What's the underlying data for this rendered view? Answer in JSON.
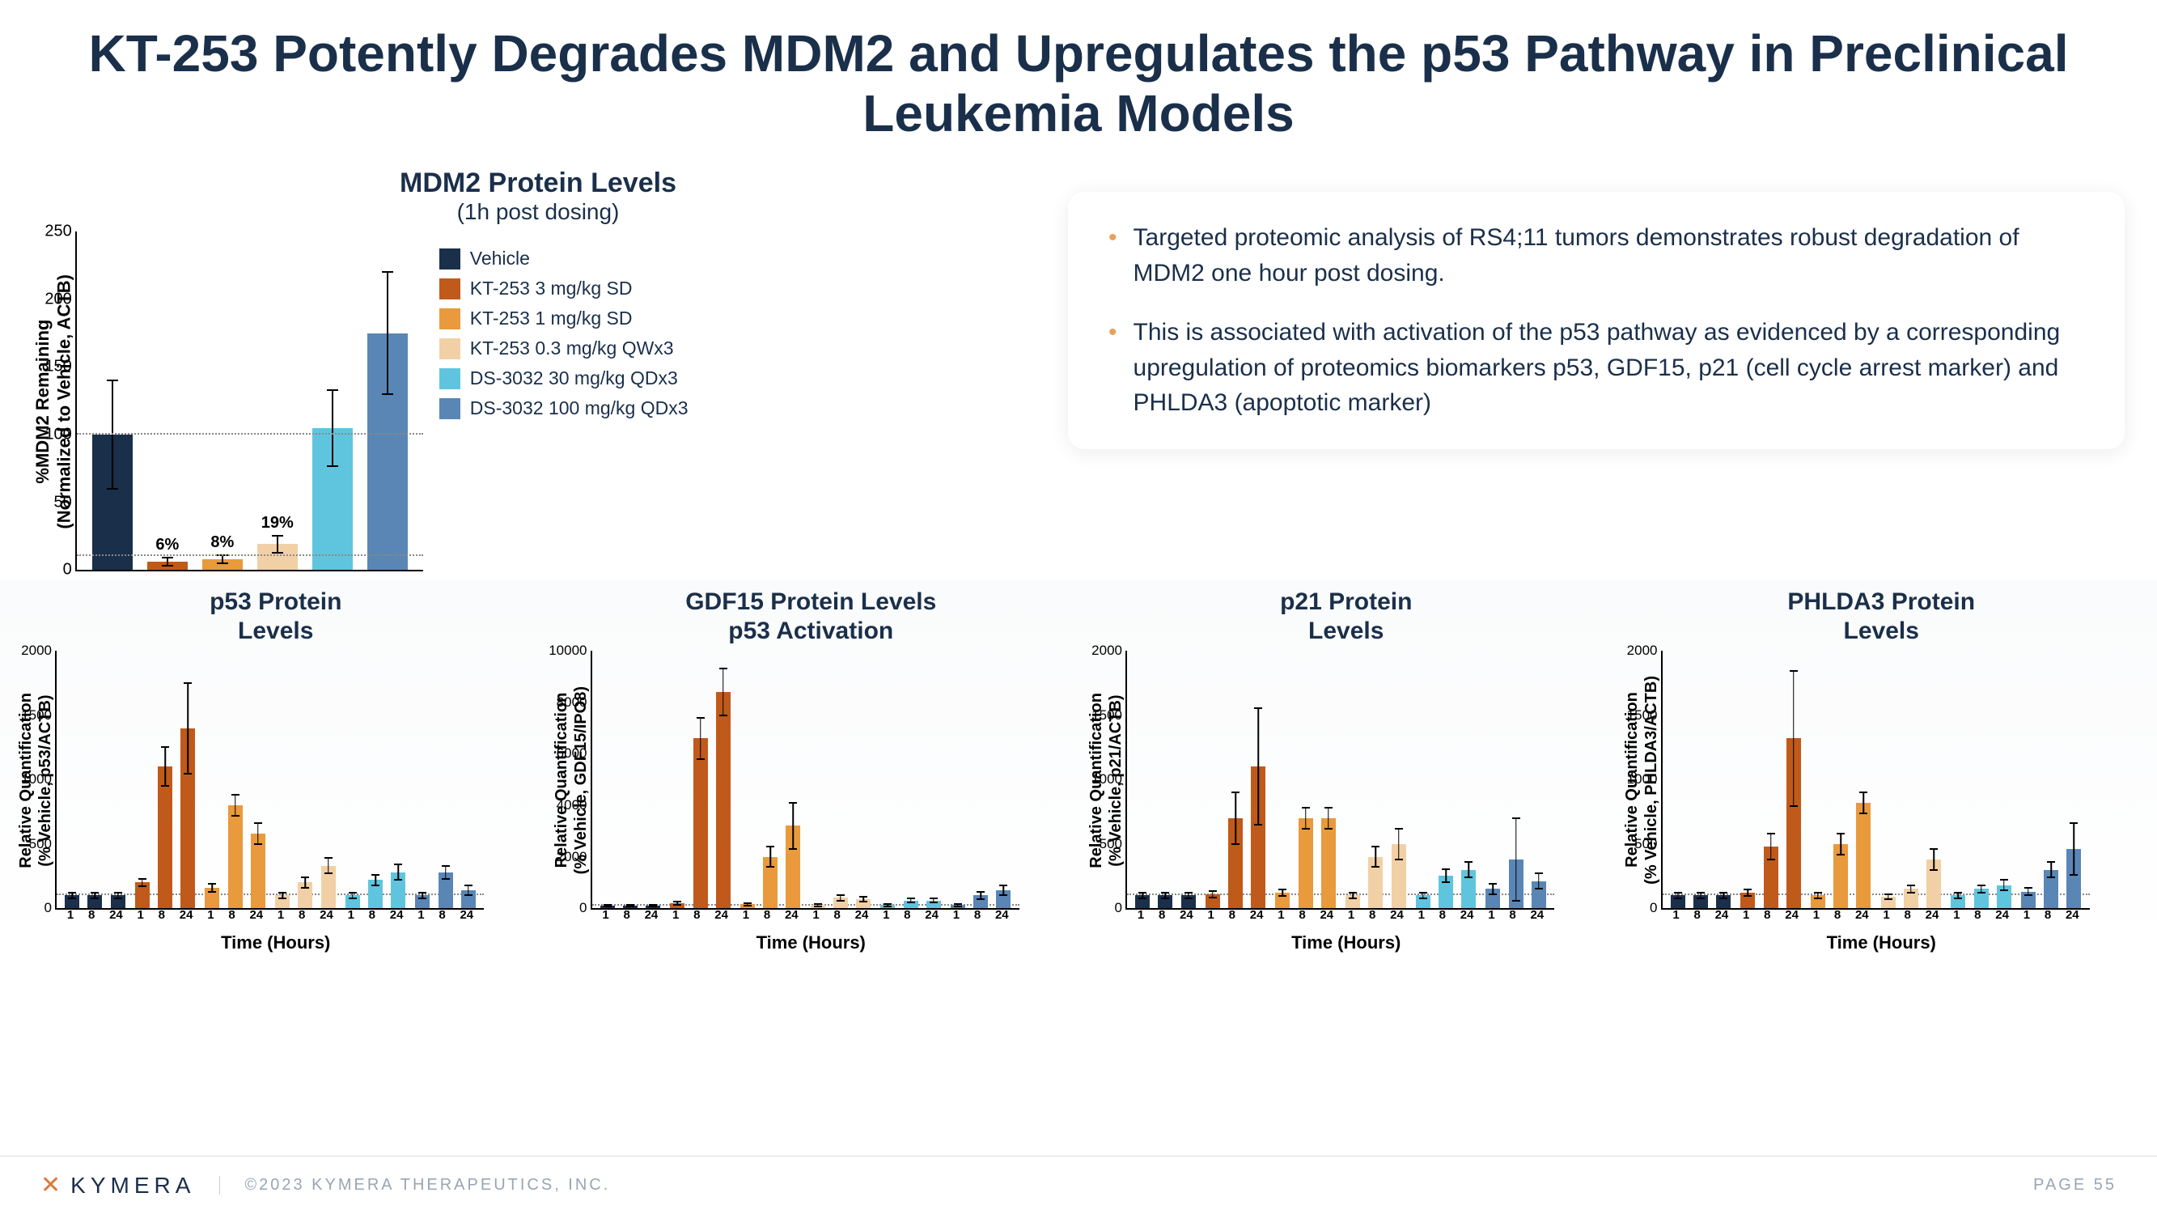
{
  "title": "KT-253 Potently Degrades MDM2 and Upregulates the p53 Pathway in Preclinical Leukemia Models",
  "colors": {
    "vehicle": "#1a2f4a",
    "kt3": "#c05a1a",
    "kt1": "#e89a3c",
    "kt03": "#f2d0a6",
    "ds30": "#5fc5de",
    "ds100": "#5a86b5",
    "bullet": "#e8a05a",
    "grid": "#888888"
  },
  "mdm2": {
    "title": "MDM2 Protein Levels",
    "subtitle": "(1h post dosing)",
    "ylabel": "%MDM2 Remaining\n(Normalized to Vehicle, ACTB)",
    "ymax": 250,
    "ytick": 50,
    "bars": [
      {
        "val": 100,
        "err": 40,
        "color": "vehicle"
      },
      {
        "val": 6,
        "err": 3,
        "color": "kt3",
        "label": "6%"
      },
      {
        "val": 8,
        "err": 3,
        "color": "kt1",
        "label": "8%"
      },
      {
        "val": 19,
        "err": 6,
        "color": "kt03",
        "label": "19%"
      },
      {
        "val": 105,
        "err": 28,
        "color": "ds30"
      },
      {
        "val": 175,
        "err": 45,
        "color": "ds100"
      }
    ]
  },
  "legend": [
    {
      "c": "vehicle",
      "t": "Vehicle"
    },
    {
      "c": "kt3",
      "t": "KT-253 3 mg/kg SD"
    },
    {
      "c": "kt1",
      "t": "KT-253 1 mg/kg SD"
    },
    {
      "c": "kt03",
      "t": "KT-253 0.3 mg/kg QWx3"
    },
    {
      "c": "ds30",
      "t": "DS-3032 30 mg/kg QDx3"
    },
    {
      "c": "ds100",
      "t": "DS-3032 100 mg/kg QDx3"
    }
  ],
  "bullets": [
    "Targeted proteomic analysis of RS4;11 tumors demonstrates robust degradation of MDM2 one hour post dosing.",
    "This is associated with activation of the p53 pathway as evidenced by a corresponding upregulation of proteomics biomarkers p53, GDF15, p21 (cell cycle arrest marker) and PHLDA3 (apoptotic marker)"
  ],
  "xlabel": "Time (Hours)",
  "xticks": [
    "1",
    "8",
    "24"
  ],
  "small": [
    {
      "title": "p53 Protein Levels",
      "ylabel": "Relative Quantification\n(% Vehicle, p53/ACTB)",
      "ymax": 2000,
      "ytick": 500,
      "groups": [
        [
          {
            "v": 100,
            "e": 20
          },
          {
            "v": 100,
            "e": 20
          },
          {
            "v": 100,
            "e": 20
          }
        ],
        [
          {
            "v": 200,
            "e": 30
          },
          {
            "v": 1100,
            "e": 150
          },
          {
            "v": 1400,
            "e": 350
          }
        ],
        [
          {
            "v": 160,
            "e": 30
          },
          {
            "v": 800,
            "e": 80
          },
          {
            "v": 580,
            "e": 80
          }
        ],
        [
          {
            "v": 100,
            "e": 20
          },
          {
            "v": 200,
            "e": 40
          },
          {
            "v": 330,
            "e": 60
          }
        ],
        [
          {
            "v": 100,
            "e": 20
          },
          {
            "v": 220,
            "e": 40
          },
          {
            "v": 280,
            "e": 60
          }
        ],
        [
          {
            "v": 100,
            "e": 20
          },
          {
            "v": 280,
            "e": 50
          },
          {
            "v": 140,
            "e": 40
          }
        ]
      ]
    },
    {
      "title": "GDF15 Protein Levels p53 Activation",
      "ylabel": "Relative Quantification\n(% Vehicle, GDF15/IPO8)",
      "ymax": 10000,
      "ytick": 2000,
      "groups": [
        [
          {
            "v": 100,
            "e": 30
          },
          {
            "v": 100,
            "e": 30
          },
          {
            "v": 100,
            "e": 30
          }
        ],
        [
          {
            "v": 200,
            "e": 60
          },
          {
            "v": 6600,
            "e": 800
          },
          {
            "v": 8400,
            "e": 900
          }
        ],
        [
          {
            "v": 150,
            "e": 50
          },
          {
            "v": 2000,
            "e": 400
          },
          {
            "v": 3200,
            "e": 900
          }
        ],
        [
          {
            "v": 120,
            "e": 40
          },
          {
            "v": 400,
            "e": 100
          },
          {
            "v": 350,
            "e": 100
          }
        ],
        [
          {
            "v": 120,
            "e": 40
          },
          {
            "v": 300,
            "e": 80
          },
          {
            "v": 300,
            "e": 80
          }
        ],
        [
          {
            "v": 120,
            "e": 40
          },
          {
            "v": 500,
            "e": 150
          },
          {
            "v": 700,
            "e": 200
          }
        ]
      ]
    },
    {
      "title": "p21 Protein Levels",
      "ylabel": "Relative Quantification\n(% Vehicle, p21/ACTB)",
      "ymax": 2000,
      "ytick": 500,
      "groups": [
        [
          {
            "v": 100,
            "e": 20
          },
          {
            "v": 100,
            "e": 20
          },
          {
            "v": 100,
            "e": 20
          }
        ],
        [
          {
            "v": 110,
            "e": 25
          },
          {
            "v": 700,
            "e": 200
          },
          {
            "v": 1100,
            "e": 450
          }
        ],
        [
          {
            "v": 120,
            "e": 25
          },
          {
            "v": 700,
            "e": 80
          },
          {
            "v": 700,
            "e": 80
          }
        ],
        [
          {
            "v": 100,
            "e": 20
          },
          {
            "v": 400,
            "e": 80
          },
          {
            "v": 500,
            "e": 120
          }
        ],
        [
          {
            "v": 100,
            "e": 20
          },
          {
            "v": 250,
            "e": 50
          },
          {
            "v": 300,
            "e": 60
          }
        ],
        [
          {
            "v": 150,
            "e": 40
          },
          {
            "v": 380,
            "e": 320
          },
          {
            "v": 210,
            "e": 60
          }
        ]
      ]
    },
    {
      "title": "PHLDA3 Protein Levels",
      "ylabel": "Relative Quantification\n(% Vehicle, PHLDA3/ACTB)",
      "ymax": 2000,
      "ytick": 500,
      "groups": [
        [
          {
            "v": 100,
            "e": 20
          },
          {
            "v": 100,
            "e": 20
          },
          {
            "v": 100,
            "e": 20
          }
        ],
        [
          {
            "v": 120,
            "e": 25
          },
          {
            "v": 480,
            "e": 100
          },
          {
            "v": 1320,
            "e": 520
          }
        ],
        [
          {
            "v": 100,
            "e": 20
          },
          {
            "v": 500,
            "e": 80
          },
          {
            "v": 820,
            "e": 80
          }
        ],
        [
          {
            "v": 90,
            "e": 20
          },
          {
            "v": 150,
            "e": 30
          },
          {
            "v": 380,
            "e": 80
          }
        ],
        [
          {
            "v": 100,
            "e": 20
          },
          {
            "v": 150,
            "e": 30
          },
          {
            "v": 180,
            "e": 40
          }
        ],
        [
          {
            "v": 130,
            "e": 30
          },
          {
            "v": 300,
            "e": 60
          },
          {
            "v": 460,
            "e": 200
          }
        ]
      ]
    }
  ],
  "footer": {
    "logo": "KYMERA",
    "copyright": "©2023 KYMERA THERAPEUTICS, INC.",
    "page": "PAGE 55"
  }
}
